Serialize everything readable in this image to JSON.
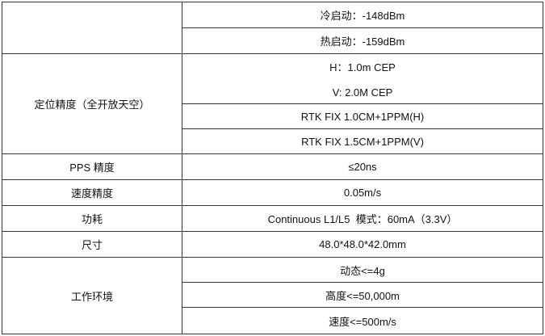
{
  "rows": {
    "sensitivity": {
      "values": [
        "冷启动：-148dBm",
        "热启动：-159dBm"
      ]
    },
    "accuracy": {
      "label": "定位精度（全开放天空）",
      "values": [
        "H：1.0m CEP",
        "V: 2.0M CEP",
        "RTK FIX 1.0CM+1PPM(H)",
        "RTK FIX 1.5CM+1PPM(V)"
      ]
    },
    "pps": {
      "label": "PPS 精度",
      "value": "≤20ns"
    },
    "velocity": {
      "label": "速度精度",
      "value": "0.05m/s"
    },
    "power": {
      "label": "功耗",
      "value": "Continuous L1/L5  模式：60mA（3.3V）"
    },
    "size": {
      "label": "尺寸",
      "value": "48.0*48.0*42.0mm"
    },
    "environment": {
      "label": "工作环境",
      "values": [
        "动态<=4g",
        "高度<=50,000m",
        "速度<=500m/s"
      ]
    }
  }
}
